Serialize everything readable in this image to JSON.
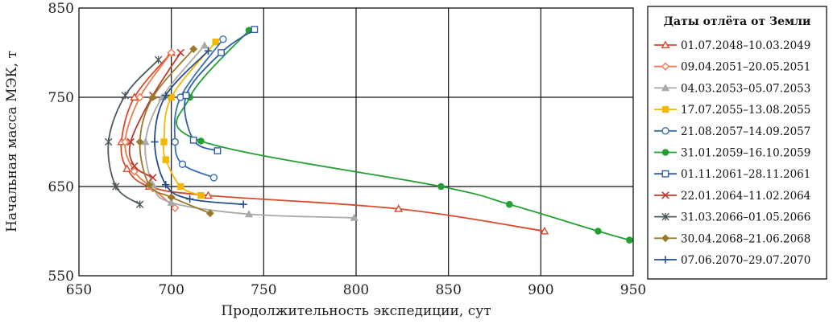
{
  "chart_data": {
    "type": "line",
    "xlabel": "Продолжительность экспедиции, сут",
    "ylabel": "Начальная масса МЭК, т",
    "xlim": [
      650,
      950
    ],
    "ylim": [
      550,
      850
    ],
    "xticks": [
      650,
      700,
      750,
      800,
      850,
      900,
      950
    ],
    "yticks": [
      550,
      650,
      750,
      850
    ],
    "grid": true,
    "legend_title": "Даты отлёта от Земли",
    "legend_position": "right",
    "series": [
      {
        "name": "01.07.2048–10.03.2049",
        "color": "#d94a2b",
        "marker": "triangle-open",
        "points": [
          [
            902,
            600
          ],
          [
            823,
            625
          ],
          [
            720,
            640
          ],
          [
            688,
            650
          ],
          [
            676,
            670
          ],
          [
            673,
            700
          ],
          [
            680,
            750
          ],
          [
            700,
            800
          ]
        ]
      },
      {
        "name": "09.04.2051–20.05.2051",
        "color": "#ee7a50",
        "marker": "diamond-open",
        "points": [
          [
            702,
            626
          ],
          [
            690,
            648
          ],
          [
            680,
            667
          ],
          [
            675,
            700
          ],
          [
            683,
            750
          ],
          [
            700,
            800
          ]
        ]
      },
      {
        "name": "04.03.2053–05.07.2053",
        "color": "#a9a9a9",
        "marker": "triangle",
        "points": [
          [
            799,
            615
          ],
          [
            742,
            619
          ],
          [
            700,
            632
          ],
          [
            690,
            652
          ],
          [
            686,
            700
          ],
          [
            695,
            750
          ],
          [
            718,
            808
          ]
        ]
      },
      {
        "name": "17.07.2055–13.08.2055",
        "color": "#f5b800",
        "marker": "square",
        "points": [
          [
            716,
            640
          ],
          [
            705,
            650
          ],
          [
            697,
            680
          ],
          [
            696,
            700
          ],
          [
            700,
            750
          ],
          [
            724,
            812
          ]
        ]
      },
      {
        "name": "21.08.2057–14.09.2057",
        "color": "#3a6fb0",
        "marker": "circle-open",
        "points": [
          [
            723,
            660
          ],
          [
            706,
            675
          ],
          [
            702,
            700
          ],
          [
            705,
            750
          ],
          [
            728,
            815
          ]
        ]
      },
      {
        "name": "31.01.2059–16.10.2059",
        "color": "#22a033",
        "marker": "circle",
        "points": [
          [
            948,
            590
          ],
          [
            931,
            600
          ],
          [
            883,
            630
          ],
          [
            846,
            650
          ],
          [
            716,
            701
          ],
          [
            710,
            750
          ],
          [
            742,
            825
          ]
        ]
      },
      {
        "name": "01.11.2061–28.11.2061",
        "color": "#2f5fa8",
        "marker": "square-open",
        "points": [
          [
            725,
            690
          ],
          [
            712,
            702
          ],
          [
            708,
            752
          ],
          [
            727,
            800
          ],
          [
            745,
            826
          ]
        ]
      },
      {
        "name": "22.01.2064–11.02.2064",
        "color": "#c0392b",
        "marker": "x",
        "points": [
          [
            690,
            660
          ],
          [
            680,
            673
          ],
          [
            678,
            700
          ],
          [
            690,
            752
          ],
          [
            705,
            800
          ]
        ]
      },
      {
        "name": "31.03.2066–01.05.2066",
        "color": "#4a5a5e",
        "marker": "star",
        "points": [
          [
            683,
            630
          ],
          [
            670,
            650
          ],
          [
            666,
            700
          ],
          [
            675,
            752
          ],
          [
            693,
            792
          ]
        ]
      },
      {
        "name": "30.04.2068–21.06.2068",
        "color": "#9a7a2a",
        "marker": "diamond",
        "points": [
          [
            721,
            620
          ],
          [
            700,
            638
          ],
          [
            688,
            652
          ],
          [
            683,
            700
          ],
          [
            690,
            750
          ],
          [
            712,
            804
          ]
        ]
      },
      {
        "name": "07.06.2070–29.07.2070",
        "color": "#274e8c",
        "marker": "plus",
        "points": [
          [
            739,
            630
          ],
          [
            710,
            636
          ],
          [
            697,
            652
          ],
          [
            691,
            700
          ],
          [
            697,
            752
          ],
          [
            720,
            802
          ]
        ]
      }
    ]
  }
}
